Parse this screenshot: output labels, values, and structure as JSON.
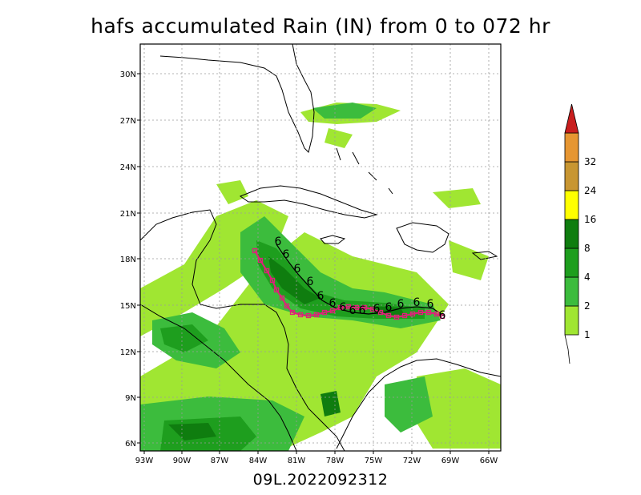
{
  "title": "hafs accumulated Rain (IN) from 0 to 072 hr",
  "footer": "09L.2022092312",
  "map": {
    "lon_labels": [
      "93W",
      "90W",
      "87W",
      "84W",
      "81W",
      "78W",
      "75W",
      "72W",
      "69W",
      "66W"
    ],
    "lat_labels": [
      "30N",
      "27N",
      "24N",
      "21N",
      "18N",
      "15N",
      "12N",
      "9N",
      "6N"
    ]
  },
  "colorbar": {
    "levels": [
      "1",
      "2",
      "4",
      "8",
      "16",
      "24",
      "32"
    ],
    "colors": [
      "#a0e632",
      "#3cbc3d",
      "#1e9e1e",
      "#0f7d0f",
      "#ffff00",
      "#c89632",
      "#e69632",
      "#c81e1e"
    ]
  },
  "storm": {
    "id": "09L",
    "symbol_labels": [
      "6",
      "6",
      "6",
      "6",
      "6",
      "6",
      "6",
      "6",
      "6",
      "6",
      "6",
      "6",
      "6",
      "6",
      "6",
      "6",
      "6",
      "6"
    ]
  },
  "colors": {
    "track_forecast": "#e0207a",
    "track_best": "#000000",
    "coast": "#000000",
    "grid": "#9a9a9a"
  }
}
